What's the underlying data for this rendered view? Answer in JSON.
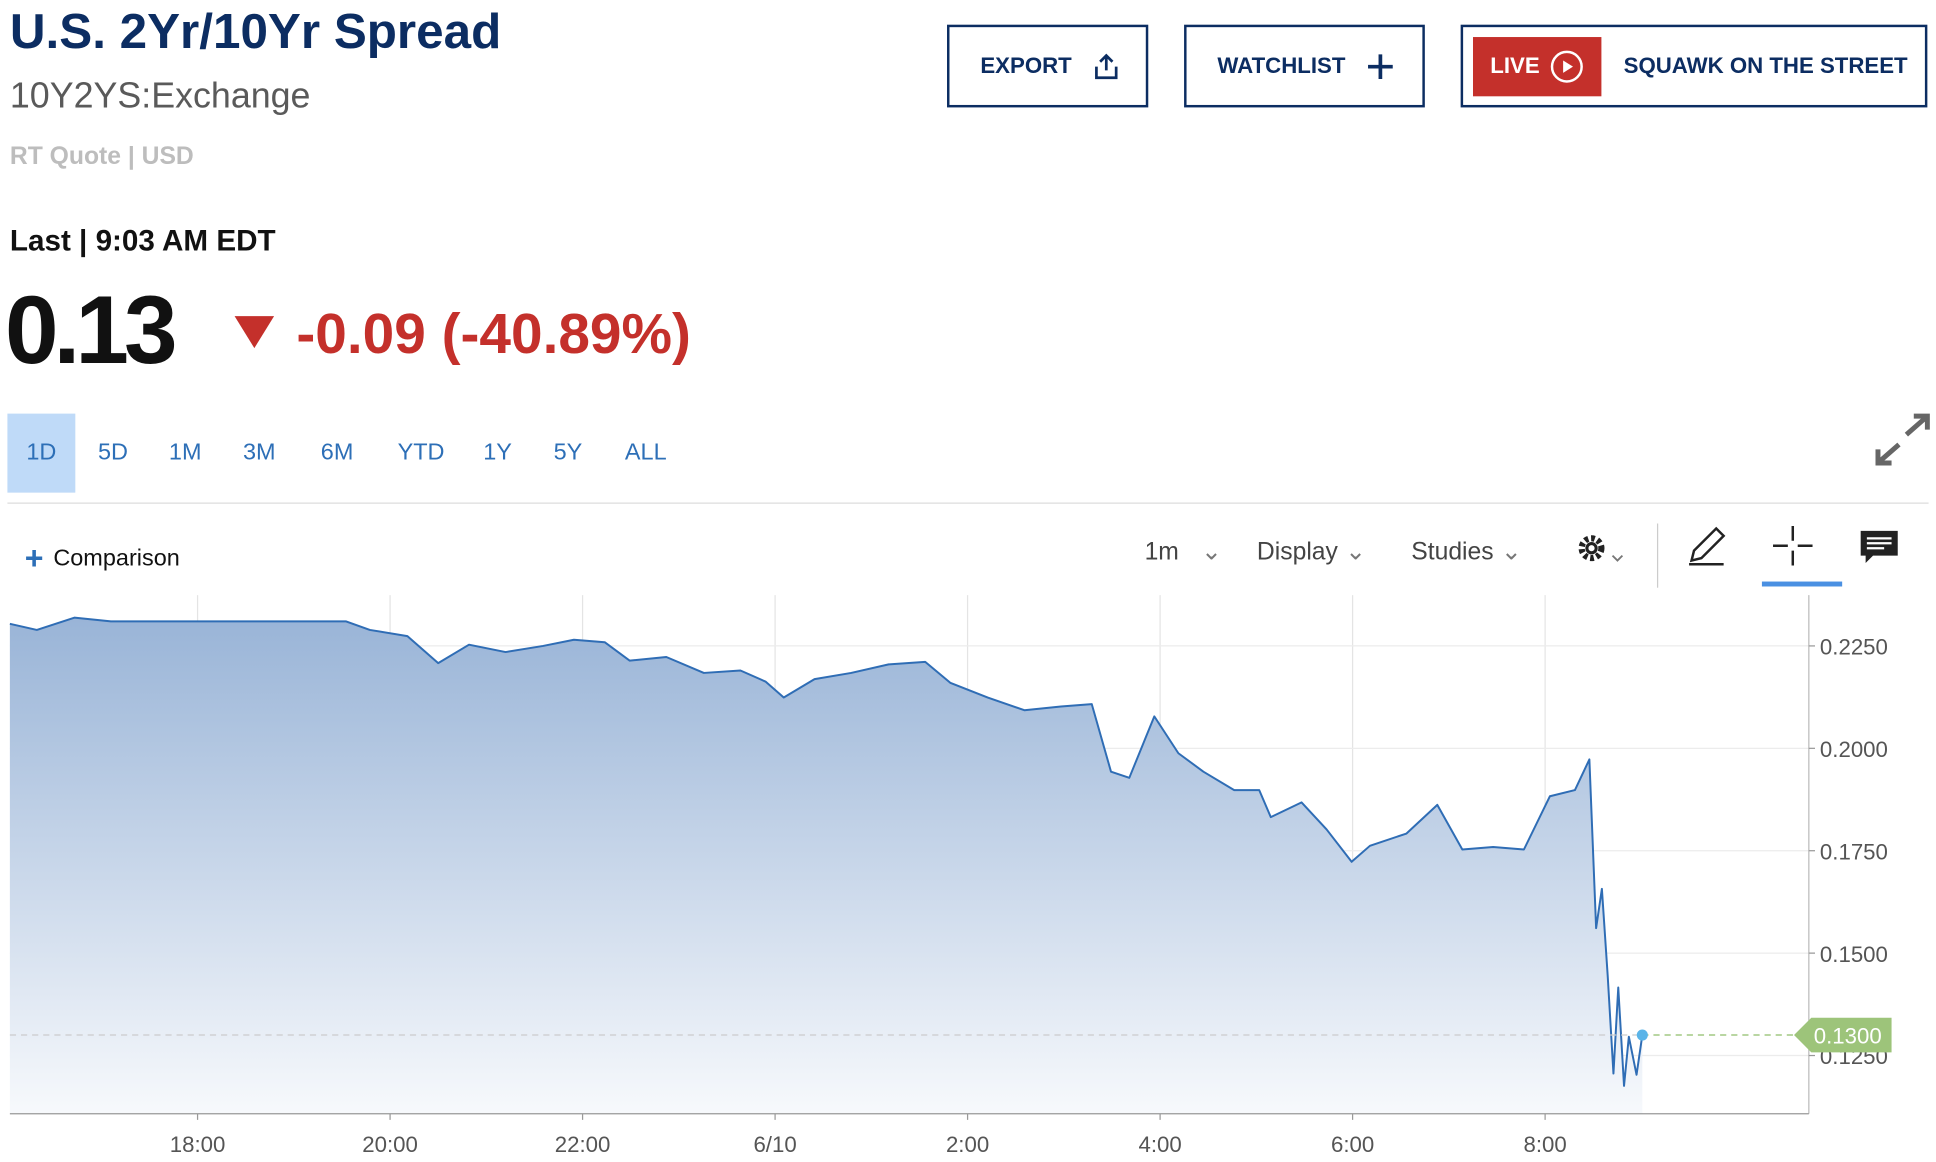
{
  "header": {
    "title": "U.S. 2Yr/10Yr Spread",
    "symbol": "10Y2YS:Exchange",
    "quote_info": "RT Quote | USD",
    "last_time": "Last | 9:03 AM EDT",
    "price": "0.13",
    "change": "-0.09 (-40.89%)"
  },
  "buttons": {
    "export": "EXPORT",
    "watchlist": "WATCHLIST",
    "live": "LIVE",
    "show": "SQUAWK ON THE STREET"
  },
  "range_tabs": [
    "1D",
    "5D",
    "1M",
    "3M",
    "6M",
    "YTD",
    "1Y",
    "5Y",
    "ALL"
  ],
  "toolbar": {
    "comparison": "Comparison",
    "interval": "1m",
    "display": "Display",
    "studies": "Studies"
  },
  "chart_data": {
    "type": "area",
    "color": "#2f6db5",
    "grid": true,
    "x": [
      16.05,
      16.33,
      16.72,
      17.1,
      19.54,
      19.79,
      20.18,
      20.5,
      20.82,
      21.2,
      21.59,
      21.91,
      22.23,
      22.49,
      22.87,
      23.26,
      23.64,
      23.9,
      24.09,
      24.41,
      24.79,
      25.18,
      25.56,
      25.82,
      26.21,
      26.59,
      26.97,
      27.29,
      27.49,
      27.68,
      27.94,
      28.19,
      28.45,
      28.77,
      29.03,
      29.15,
      29.47,
      29.73,
      29.99,
      30.18,
      30.56,
      30.88,
      31.14,
      31.46,
      31.78,
      32.05,
      32.31,
      32.46,
      32.53,
      32.59,
      32.65,
      32.71,
      32.76,
      32.82,
      32.87,
      32.95,
      33.01
    ],
    "values": [
      0.2304,
      0.2289,
      0.2319,
      0.231,
      0.231,
      0.2289,
      0.2274,
      0.2208,
      0.2253,
      0.2235,
      0.225,
      0.2265,
      0.2259,
      0.2214,
      0.2223,
      0.2184,
      0.219,
      0.2163,
      0.2124,
      0.2169,
      0.2184,
      0.2205,
      0.2211,
      0.216,
      0.2124,
      0.2093,
      0.2102,
      0.2108,
      0.1943,
      0.1928,
      0.2078,
      0.1988,
      0.1943,
      0.1898,
      0.1898,
      0.1832,
      0.1868,
      0.1802,
      0.1723,
      0.1762,
      0.1792,
      0.1862,
      0.1753,
      0.1759,
      0.1753,
      0.1883,
      0.1898,
      0.1973,
      0.1561,
      0.1657,
      0.1446,
      0.1206,
      0.1416,
      0.1176,
      0.1296,
      0.1203,
      0.13
    ],
    "xlim": [
      16.05,
      34.74
    ],
    "xticks": [
      {
        "value": 18,
        "label": "18:00"
      },
      {
        "value": 20,
        "label": "20:00"
      },
      {
        "value": 22,
        "label": "22:00"
      },
      {
        "value": 24,
        "label": "6/10"
      },
      {
        "value": 26,
        "label": "2:00"
      },
      {
        "value": 28,
        "label": "4:00"
      },
      {
        "value": 30,
        "label": "6:00"
      },
      {
        "value": 32,
        "label": "8:00"
      }
    ],
    "ylim": [
      0.1108,
      0.2374
    ],
    "yticks": [
      {
        "value": 0.125,
        "label": "0.1250"
      },
      {
        "value": 0.15,
        "label": "0.1500"
      },
      {
        "value": 0.175,
        "label": "0.1750"
      },
      {
        "value": 0.2,
        "label": "0.2000"
      },
      {
        "value": 0.225,
        "label": "0.2250"
      }
    ],
    "last_price": {
      "value": 0.13,
      "label": "0.1300"
    }
  }
}
